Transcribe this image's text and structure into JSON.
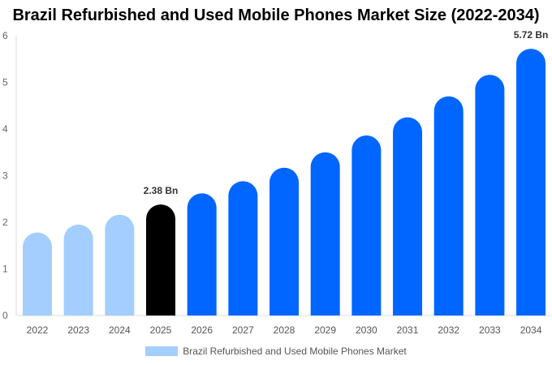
{
  "chart_data": {
    "type": "bar",
    "title": "Brazil Refurbished and Used Mobile Phones Market Size (2022-2034)",
    "categories": [
      "2022",
      "2023",
      "2024",
      "2025",
      "2026",
      "2027",
      "2028",
      "2029",
      "2030",
      "2031",
      "2032",
      "2033",
      "2034"
    ],
    "series": [
      {
        "name": "Brazil Refurbished and Used Mobile Phones Market",
        "values": [
          1.78,
          1.95,
          2.16,
          2.38,
          2.62,
          2.88,
          3.17,
          3.5,
          3.86,
          4.25,
          4.7,
          5.16,
          5.72
        ]
      }
    ],
    "data_labels": {
      "3": "2.38 Bn",
      "12": "5.72 Bn"
    },
    "ylim": [
      0,
      6
    ],
    "yticks": [
      "0",
      "1",
      "2",
      "3",
      "4",
      "5",
      "6"
    ],
    "grid": false,
    "legend_position": "bottom",
    "colors": {
      "historic": "#a3cefe",
      "current": "#000000",
      "forecast": "#0066ff"
    }
  }
}
